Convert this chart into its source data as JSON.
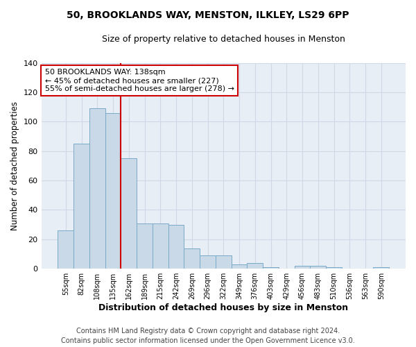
{
  "title": "50, BROOKLANDS WAY, MENSTON, ILKLEY, LS29 6PP",
  "subtitle": "Size of property relative to detached houses in Menston",
  "xlabel": "Distribution of detached houses by size in Menston",
  "ylabel": "Number of detached properties",
  "bar_labels": [
    "55sqm",
    "82sqm",
    "108sqm",
    "135sqm",
    "162sqm",
    "189sqm",
    "215sqm",
    "242sqm",
    "269sqm",
    "296sqm",
    "322sqm",
    "349sqm",
    "376sqm",
    "403sqm",
    "429sqm",
    "456sqm",
    "483sqm",
    "510sqm",
    "536sqm",
    "563sqm",
    "590sqm"
  ],
  "bar_values": [
    26,
    85,
    109,
    106,
    75,
    31,
    31,
    30,
    14,
    9,
    9,
    3,
    4,
    1,
    0,
    2,
    2,
    1,
    0,
    0,
    1
  ],
  "bar_color": "#c9d9e8",
  "bar_edge_color": "#7aaac8",
  "ylim": [
    0,
    140
  ],
  "yticks": [
    0,
    20,
    40,
    60,
    80,
    100,
    120,
    140
  ],
  "grid_color": "#d0d8e8",
  "plot_bg_color": "#e8eef5",
  "fig_bg_color": "#ffffff",
  "property_line_color": "#cc0000",
  "annotation_text": "50 BROOKLANDS WAY: 138sqm\n← 45% of detached houses are smaller (227)\n55% of semi-detached houses are larger (278) →",
  "annotation_box_color": "#ffffff",
  "annotation_box_edge_color": "#cc0000",
  "footer_line1": "Contains HM Land Registry data © Crown copyright and database right 2024.",
  "footer_line2": "Contains public sector information licensed under the Open Government Licence v3.0.",
  "bar_width": 1.0
}
